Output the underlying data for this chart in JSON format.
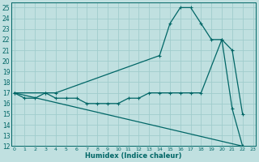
{
  "xlabel": "Humidex (Indice chaleur)",
  "bg_color": "#c0e0e0",
  "grid_color": "#a0cccc",
  "line_color": "#006666",
  "ylim": [
    12,
    25.5
  ],
  "xlim": [
    -0.3,
    23.3
  ],
  "yticks": [
    12,
    13,
    14,
    15,
    16,
    17,
    18,
    19,
    20,
    21,
    22,
    23,
    24,
    25
  ],
  "xticks": [
    0,
    1,
    2,
    3,
    4,
    5,
    6,
    7,
    8,
    9,
    10,
    11,
    12,
    13,
    14,
    15,
    16,
    17,
    18,
    19,
    20,
    21,
    22,
    23
  ],
  "line1_x": [
    0,
    1,
    2,
    3,
    4,
    5,
    6,
    7,
    8,
    9,
    10,
    11,
    12,
    13,
    14,
    15,
    16,
    17,
    18,
    20,
    21,
    22
  ],
  "line1_y": [
    17,
    16.5,
    16.5,
    17,
    16.5,
    16.5,
    16.5,
    16,
    16,
    16,
    16,
    16.5,
    16.5,
    17,
    17,
    17,
    17,
    17,
    17,
    22,
    21,
    15
  ],
  "line2_x": [
    0,
    3,
    4,
    14,
    15,
    16,
    17,
    18,
    19,
    20,
    21,
    22
  ],
  "line2_y": [
    17,
    17,
    17,
    20.5,
    23.5,
    25,
    25,
    23.5,
    22,
    22,
    15.5,
    12
  ],
  "line3_x": [
    0,
    22
  ],
  "line3_y": [
    17,
    12
  ],
  "ytick_fontsize": 5.5,
  "xtick_fontsize": 4.5,
  "xlabel_fontsize": 6.0
}
